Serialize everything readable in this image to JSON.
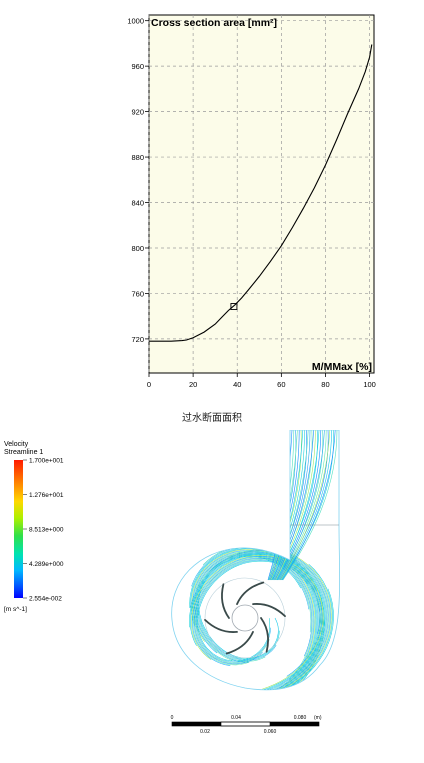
{
  "chart_data": {
    "type": "line",
    "title": "Cross section area [mm²]",
    "xlabel": "M/MMax [%]",
    "ylabel": "",
    "xlim": [
      0,
      102
    ],
    "ylim": [
      690,
      1005
    ],
    "xticks": [
      0,
      20,
      40,
      60,
      80,
      100
    ],
    "yticks": [
      720,
      760,
      800,
      840,
      880,
      920,
      960,
      1000
    ],
    "grid": true,
    "series": [
      {
        "x": [
          0,
          5,
          10,
          15,
          17,
          20,
          25,
          30,
          33,
          36,
          39,
          42,
          45,
          50,
          55,
          60,
          65,
          70,
          75,
          80,
          85,
          90,
          95,
          98,
          100,
          101
        ],
        "y": [
          718,
          718,
          718,
          718.5,
          719,
          721,
          726,
          733,
          739,
          745,
          750,
          756,
          763,
          775,
          788,
          802,
          818,
          835,
          853,
          873,
          895,
          918,
          940,
          955,
          968,
          979
        ]
      }
    ],
    "marker": {
      "x": 38.5,
      "y": 748.5
    }
  },
  "caption": "过水断面面积",
  "legend": {
    "title": "Velocity",
    "subtitle": "Streamline 1",
    "labels": [
      "1.700e+001",
      "1.276e+001",
      "8.513e+000",
      "4.289e+000",
      "2.554e-002"
    ],
    "unit": "[m s^-1]",
    "colors": [
      "#ff1a00",
      "#ff7a00",
      "#ffd800",
      "#aef000",
      "#2fe04a",
      "#00e3b0",
      "#00b8ff",
      "#0050ff",
      "#0000ff"
    ]
  },
  "scale_bar": {
    "top_labels": [
      "0",
      "0.04",
      "0.080"
    ],
    "top_unit": "(m)",
    "bottom_labels": [
      "0.02",
      "0.060"
    ]
  }
}
